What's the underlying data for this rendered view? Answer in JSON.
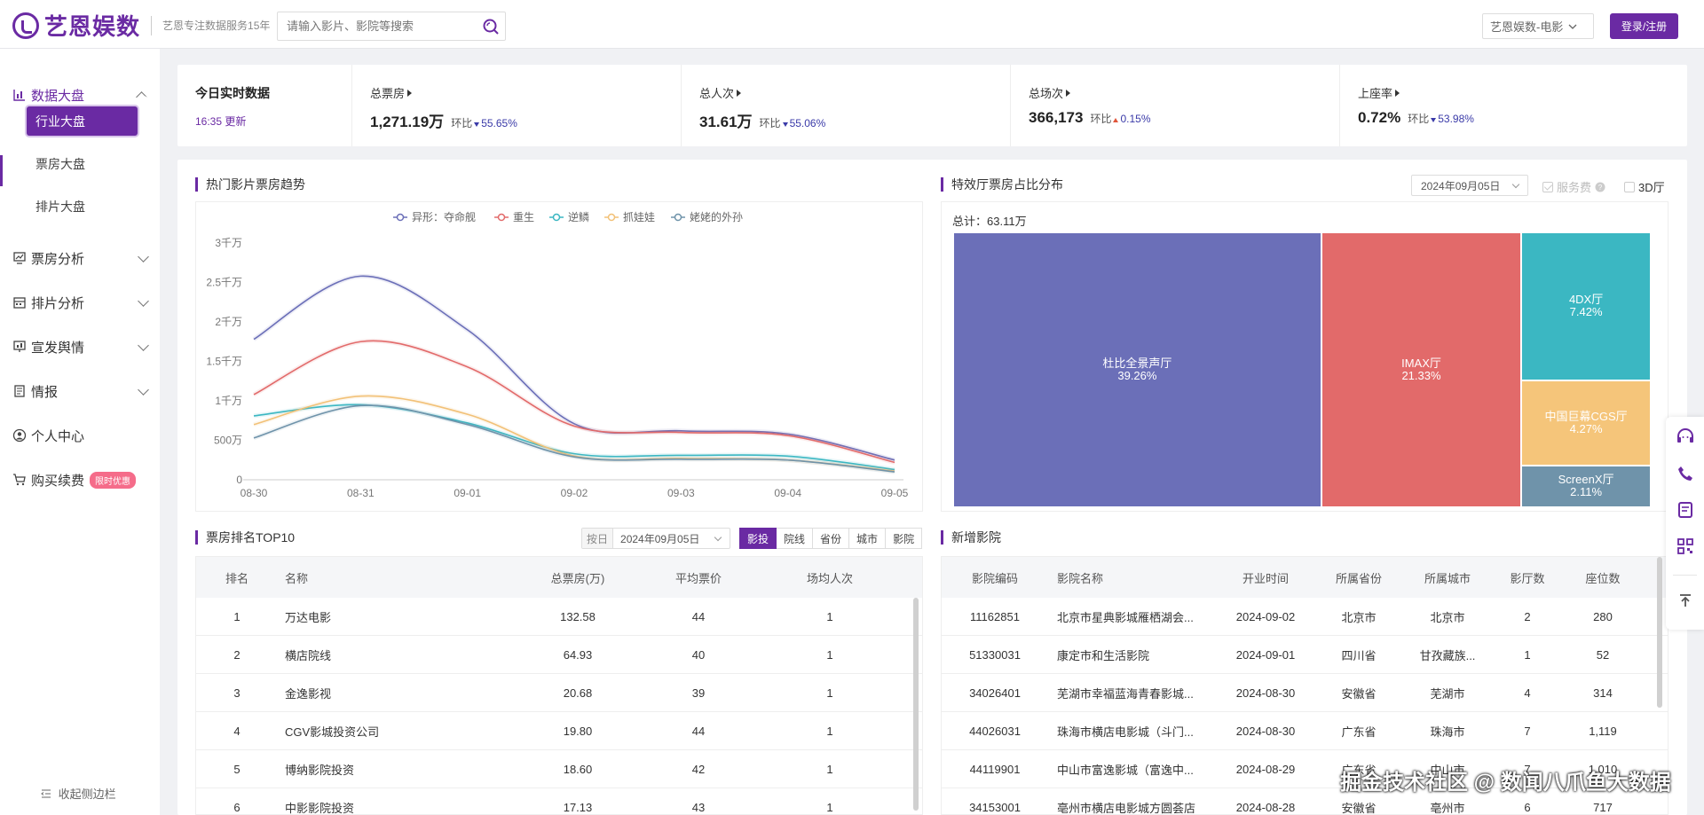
{
  "header": {
    "brand": "艺恩娱数",
    "slogan": "艺恩专注数据服务15年",
    "search_placeholder": "请输入影片、影院等搜索",
    "product_select": "艺恩娱数-电影",
    "login_label": "登录/注册"
  },
  "sidebar": {
    "groups": [
      {
        "label": "数据大盘",
        "icon": "bar-chart-icon"
      },
      {
        "label": "票房分析",
        "icon": "monitor-chart-icon"
      },
      {
        "label": "排片分析",
        "icon": "schedule-icon"
      },
      {
        "label": "宣发舆情",
        "icon": "presentation-icon"
      },
      {
        "label": "情报",
        "icon": "document-icon"
      },
      {
        "label": "个人中心",
        "icon": "user-circle-icon"
      },
      {
        "label": "购买续费",
        "icon": "cart-icon"
      }
    ],
    "sub_items": [
      "行业大盘",
      "票房大盘",
      "排片大盘"
    ],
    "promo_badge": "限时优惠",
    "collapse_label": "收起侧边栏"
  },
  "realtime": {
    "title": "今日实时数据",
    "update": "16:35 更新",
    "ratio_label": "环比",
    "metrics": [
      {
        "label": "总票房",
        "value": "1,271.19万",
        "ratio": "55.65%",
        "trend": "down"
      },
      {
        "label": "总人次",
        "value": "31.61万",
        "ratio": "55.06%",
        "trend": "down"
      },
      {
        "label": "总场次",
        "value": "366,173",
        "ratio": "0.15%",
        "trend": "up"
      },
      {
        "label": "上座率",
        "value": "0.72%",
        "ratio": "53.98%",
        "trend": "down"
      }
    ]
  },
  "trend": {
    "title": "热门影片票房趋势"
  },
  "chart_data": {
    "type": "line",
    "x": [
      "08-30",
      "08-31",
      "09-01",
      "09-02",
      "09-03",
      "09-04",
      "09-05"
    ],
    "yticks": [
      "0",
      "500万",
      "1千万",
      "1.5千万",
      "2千万",
      "2.5千万",
      "3千万"
    ],
    "ylim": [
      0,
      30000000
    ],
    "legend_position": "top",
    "series": [
      {
        "name": "异形：夺命舰",
        "color": "#6b6fb8",
        "values": [
          17800000,
          25800000,
          19000000,
          7100000,
          6200000,
          5800000,
          2500000
        ]
      },
      {
        "name": "重生",
        "color": "#e26a6a",
        "values": [
          10800000,
          17500000,
          14300000,
          6800000,
          6000000,
          5600000,
          2200000
        ]
      },
      {
        "name": "逆鳞",
        "color": "#3bb7c2",
        "values": [
          8100000,
          9500000,
          7200000,
          3300000,
          3100000,
          3000000,
          1300000
        ]
      },
      {
        "name": "抓娃娃",
        "color": "#f2c177",
        "values": [
          7000000,
          10600000,
          8300000,
          3000000,
          2700000,
          2500000,
          1100000
        ]
      },
      {
        "name": "姥姥的外孙",
        "color": "#6f93aa",
        "values": [
          5300000,
          9400000,
          7000000,
          2900000,
          2600000,
          2500000,
          1000000
        ]
      }
    ]
  },
  "special_halls": {
    "title": "特效厅票房占比分布",
    "date": "2024年09月05日",
    "service_fee_label": "服务费",
    "hall_3d_label": "3D厅",
    "total": "总计：63.11万",
    "blocks": [
      {
        "name": "杜比全景声厅",
        "pct": "39.26%",
        "value": 39.26,
        "color": "#6b6fb8"
      },
      {
        "name": "IMAX厅",
        "pct": "21.33%",
        "value": 21.33,
        "color": "#e26a6a"
      },
      {
        "name": "4DX厅",
        "pct": "7.42%",
        "value": 7.42,
        "color": "#3bb7c2"
      },
      {
        "name": "中国巨幕CGS厅",
        "pct": "4.27%",
        "value": 4.27,
        "color": "#f5c57a"
      },
      {
        "name": "ScreenX厅",
        "pct": "2.11%",
        "value": 2.11,
        "color": "#6f93aa"
      }
    ]
  },
  "ranking": {
    "title": "票房排名TOP10",
    "by_day": "按日",
    "date": "2024年09月05日",
    "tabs": [
      "影投",
      "院线",
      "省份",
      "城市",
      "影院"
    ],
    "columns": [
      "排名",
      "名称",
      "总票房(万)",
      "平均票价",
      "场均人次"
    ],
    "rows": [
      [
        "1",
        "万达电影",
        "132.58",
        "44",
        "1"
      ],
      [
        "2",
        "横店院线",
        "64.93",
        "40",
        "1"
      ],
      [
        "3",
        "金逸影视",
        "20.68",
        "39",
        "1"
      ],
      [
        "4",
        "CGV影城投资公司",
        "19.80",
        "44",
        "1"
      ],
      [
        "5",
        "博纳影院投资",
        "18.60",
        "42",
        "1"
      ],
      [
        "6",
        "中影影院投资",
        "17.13",
        "43",
        "1"
      ]
    ]
  },
  "new_cinemas": {
    "title": "新增影院",
    "columns": [
      "影院编码",
      "影院名称",
      "开业时间",
      "所属省份",
      "所属城市",
      "影厅数",
      "座位数"
    ],
    "rows": [
      [
        "11162851",
        "北京市星典影城雁栖湖会...",
        "2024-09-02",
        "北京市",
        "北京市",
        "2",
        "280"
      ],
      [
        "51330031",
        "康定市和生活影院",
        "2024-09-01",
        "四川省",
        "甘孜藏族...",
        "1",
        "52"
      ],
      [
        "34026401",
        "芜湖市幸福蓝海青春影城...",
        "2024-08-30",
        "安徽省",
        "芜湖市",
        "4",
        "314"
      ],
      [
        "44026031",
        "珠海市横店电影城（斗门...",
        "2024-08-30",
        "广东省",
        "珠海市",
        "7",
        "1,119"
      ],
      [
        "44119901",
        "中山市富逸影城（富逸中...",
        "2024-08-29",
        "广东省",
        "中山市",
        "7",
        "1,010"
      ],
      [
        "34153001",
        "亳州市横店电影城方圆荟店",
        "2024-08-28",
        "安徽省",
        "亳州市",
        "6",
        "717"
      ]
    ]
  },
  "float_tools": [
    "headset-icon",
    "phone-icon",
    "feedback-icon",
    "qrcode-icon",
    "back-to-top-icon"
  ],
  "watermark": "掘金技术社区 @ 数闻八爪鱼大数据"
}
